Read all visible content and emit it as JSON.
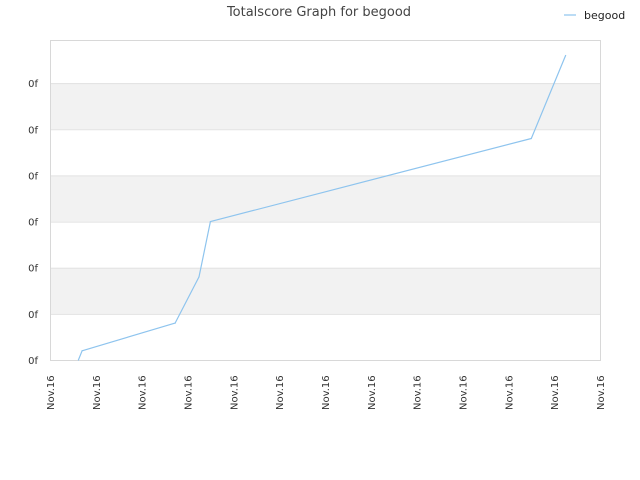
{
  "chart_data": {
    "type": "line",
    "title": "Totalscore Graph for begood",
    "xlabel": "",
    "ylabel": "",
    "legend": {
      "placement": "top-right",
      "entries": [
        "begood"
      ]
    },
    "x_tick_labels": [
      "Nov.16",
      "Nov.16",
      "Nov.16",
      "Nov.16",
      "Nov.16",
      "Nov.16",
      "Nov.16",
      "Nov.16",
      "Nov.16",
      "Nov.16",
      "Nov.16",
      "Nov.16",
      "Nov.16"
    ],
    "y_tick_labels": [
      "0f",
      "0f",
      "0f",
      "0f",
      "0f",
      "0f",
      "0f"
    ],
    "xlim": [
      0,
      12
    ],
    "ylim": [
      0,
      7
    ],
    "grid": true,
    "colors": {
      "line": "#8ec4ee",
      "band_shade": "#f2f2f2",
      "band_top": "#ebebeb",
      "grid": "#e2e2e2",
      "plot_border": "#d8d8d8"
    },
    "series": [
      {
        "name": "begood",
        "points": [
          {
            "x": 0.62,
            "y": 0.0
          },
          {
            "x": 0.7,
            "y": 0.2
          },
          {
            "x": 2.73,
            "y": 0.8
          },
          {
            "x": 3.25,
            "y": 1.8
          },
          {
            "x": 3.5,
            "y": 3.0
          },
          {
            "x": 10.5,
            "y": 4.8
          },
          {
            "x": 11.25,
            "y": 6.6
          }
        ]
      }
    ]
  }
}
